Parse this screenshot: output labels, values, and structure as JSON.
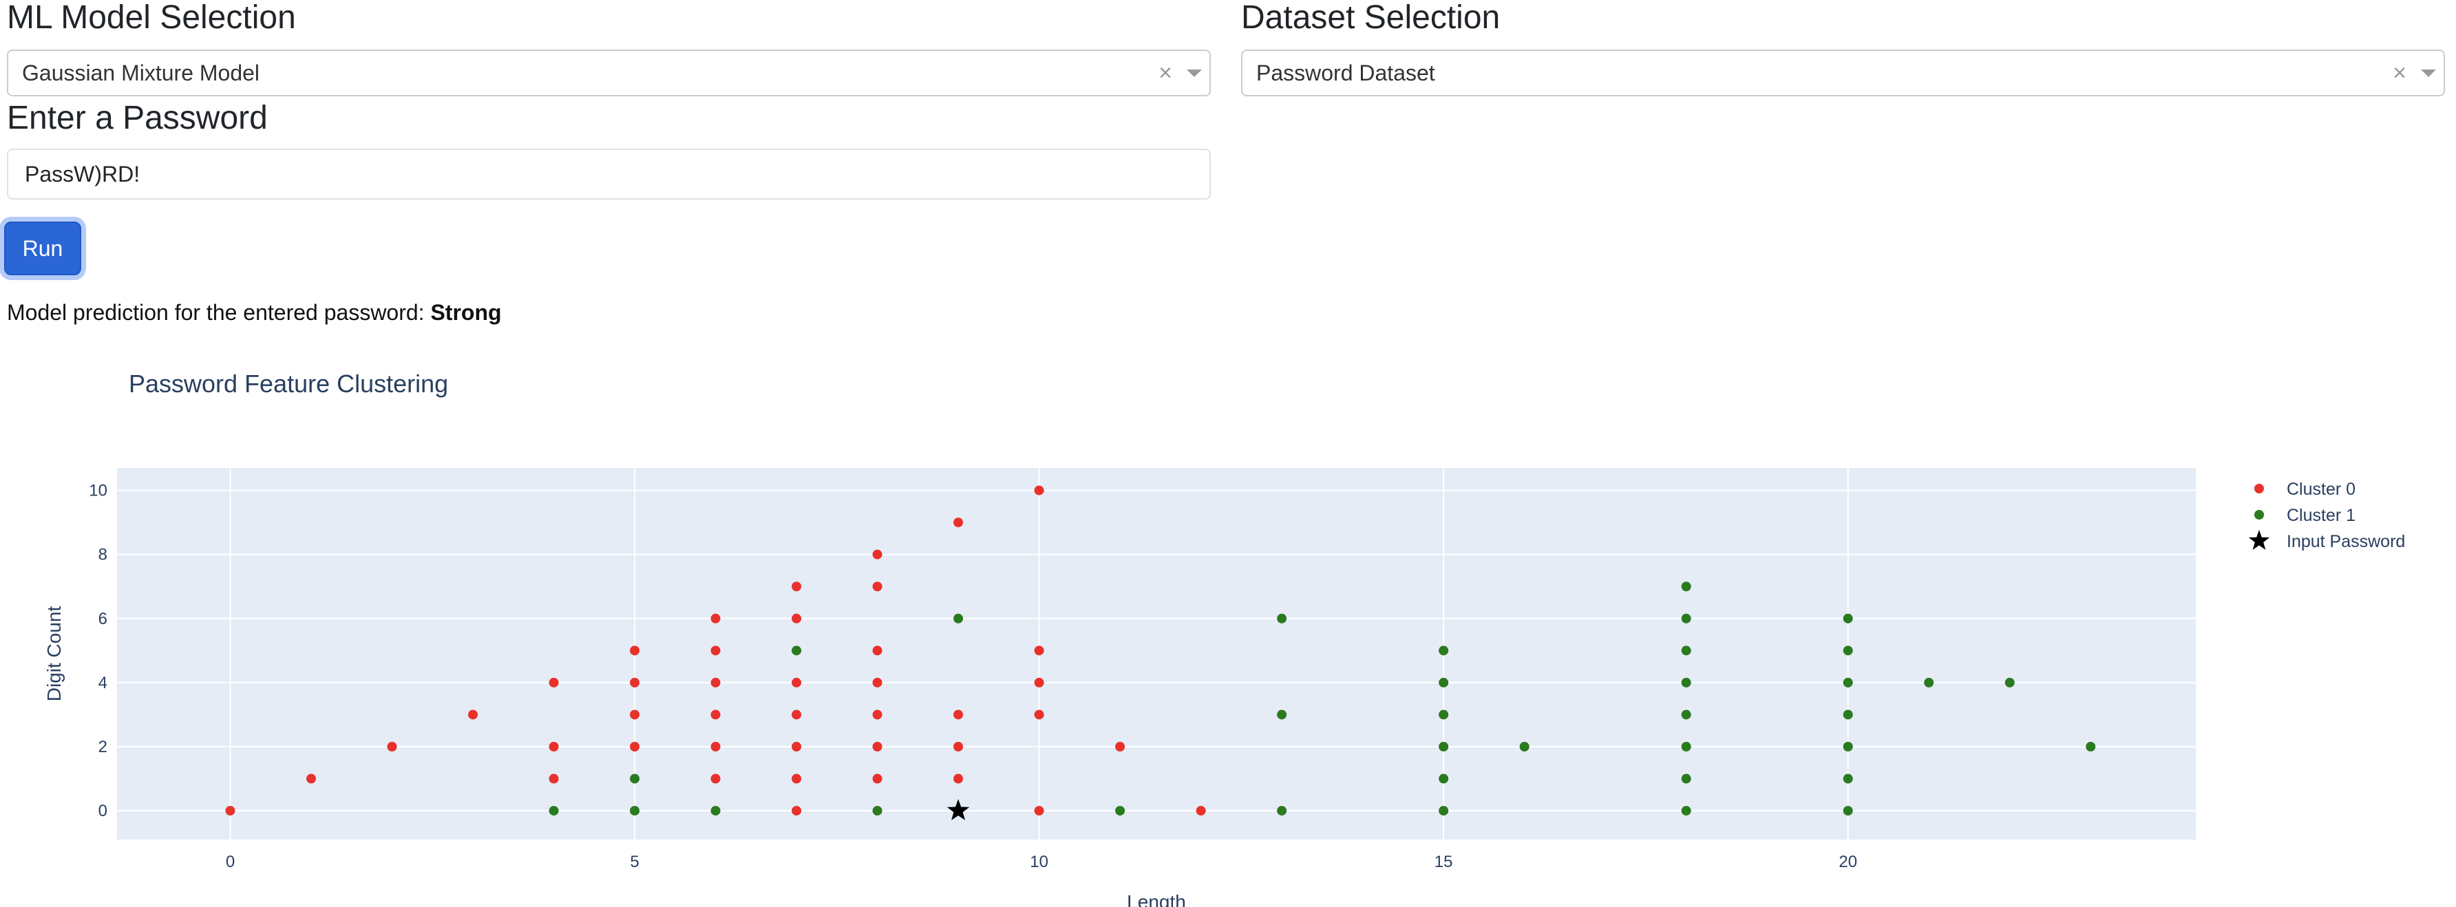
{
  "model_selection": {
    "title": "ML Model Selection",
    "selected": "Gaussian Mixture Model",
    "clear_symbol": "×"
  },
  "dataset_selection": {
    "title": "Dataset Selection",
    "selected": "Password Dataset",
    "clear_symbol": "×"
  },
  "password": {
    "title": "Enter a Password",
    "value": "PassW)RD!"
  },
  "run_button": {
    "label": "Run"
  },
  "prediction": {
    "prefix": "Model prediction for the entered password:",
    "value": "Strong"
  },
  "chart_data": {
    "type": "scatter",
    "title": "Password Feature Clustering",
    "xlabel": "Length",
    "ylabel": "Digit Count",
    "xlim": [
      -1.4,
      24.3
    ],
    "ylim": [
      -0.9,
      10.7
    ],
    "xticks": [
      0,
      5,
      10,
      15,
      20
    ],
    "yticks": [
      0,
      2,
      4,
      6,
      8,
      10
    ],
    "grid": true,
    "legend_position": "top-right",
    "plot_bg": "#e5ecf6",
    "series": [
      {
        "name": "Cluster 0",
        "color": "#e8312a",
        "marker": "circle",
        "points": [
          [
            0,
            0
          ],
          [
            1,
            1
          ],
          [
            2,
            2
          ],
          [
            3,
            3
          ],
          [
            4,
            1
          ],
          [
            4,
            2
          ],
          [
            4,
            4
          ],
          [
            5,
            2
          ],
          [
            5,
            3
          ],
          [
            5,
            4
          ],
          [
            5,
            5
          ],
          [
            6,
            1
          ],
          [
            6,
            2
          ],
          [
            6,
            3
          ],
          [
            6,
            4
          ],
          [
            6,
            5
          ],
          [
            6,
            6
          ],
          [
            7,
            0
          ],
          [
            7,
            1
          ],
          [
            7,
            2
          ],
          [
            7,
            3
          ],
          [
            7,
            4
          ],
          [
            7,
            6
          ],
          [
            7,
            7
          ],
          [
            8,
            1
          ],
          [
            8,
            2
          ],
          [
            8,
            3
          ],
          [
            8,
            4
          ],
          [
            8,
            5
          ],
          [
            8,
            7
          ],
          [
            8,
            8
          ],
          [
            9,
            1
          ],
          [
            9,
            2
          ],
          [
            9,
            3
          ],
          [
            9,
            9
          ],
          [
            10,
            0
          ],
          [
            10,
            3
          ],
          [
            10,
            4
          ],
          [
            10,
            5
          ],
          [
            10,
            10
          ],
          [
            11,
            2
          ],
          [
            12,
            0
          ]
        ]
      },
      {
        "name": "Cluster 1",
        "color": "#2a7a1e",
        "marker": "circle",
        "points": [
          [
            4,
            0
          ],
          [
            5,
            0
          ],
          [
            5,
            1
          ],
          [
            6,
            0
          ],
          [
            7,
            5
          ],
          [
            8,
            0
          ],
          [
            9,
            6
          ],
          [
            11,
            0
          ],
          [
            13,
            0
          ],
          [
            13,
            3
          ],
          [
            13,
            6
          ],
          [
            15,
            0
          ],
          [
            15,
            1
          ],
          [
            15,
            2
          ],
          [
            15,
            3
          ],
          [
            15,
            4
          ],
          [
            15,
            5
          ],
          [
            16,
            2
          ],
          [
            18,
            0
          ],
          [
            18,
            1
          ],
          [
            18,
            2
          ],
          [
            18,
            3
          ],
          [
            18,
            4
          ],
          [
            18,
            5
          ],
          [
            18,
            6
          ],
          [
            18,
            7
          ],
          [
            20,
            0
          ],
          [
            20,
            1
          ],
          [
            20,
            2
          ],
          [
            20,
            3
          ],
          [
            20,
            4
          ],
          [
            20,
            5
          ],
          [
            20,
            6
          ],
          [
            21,
            4
          ],
          [
            22,
            4
          ],
          [
            23,
            2
          ]
        ]
      },
      {
        "name": "Input Password",
        "color": "#000000",
        "marker": "star",
        "points": [
          [
            9,
            0
          ]
        ]
      }
    ]
  }
}
